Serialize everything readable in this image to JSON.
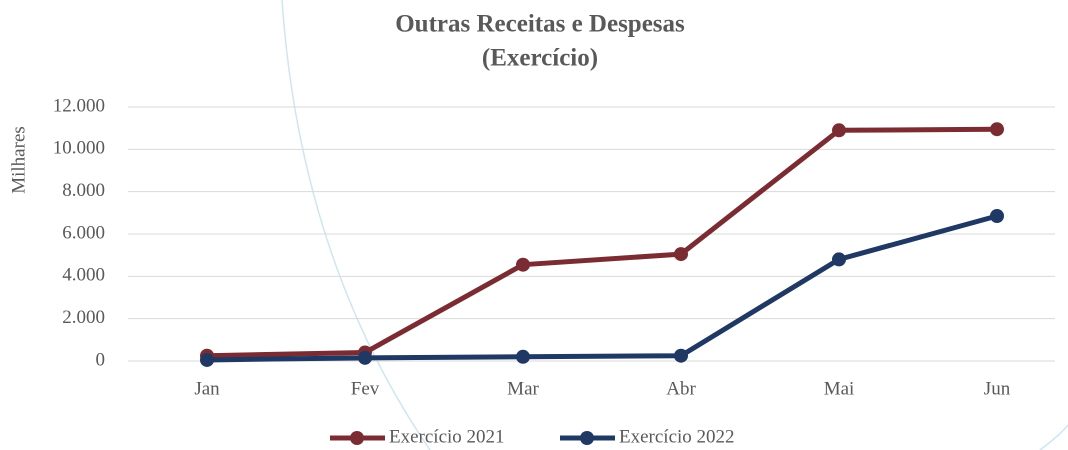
{
  "chart_data": {
    "type": "line",
    "title": [
      "Outras Receitas e Despesas",
      "(Exercício)"
    ],
    "y_label": "Milhares",
    "categories": [
      "Jan",
      "Fev",
      "Mar",
      "Abr",
      "Mai",
      "Jun"
    ],
    "series": [
      {
        "name": "Exercício 2021",
        "color": "#7b2c33",
        "values": [
          250,
          400,
          4550,
          5050,
          10900,
          10950
        ]
      },
      {
        "name": "Exercício 2022",
        "color": "#1f3864",
        "values": [
          50,
          150,
          200,
          250,
          4800,
          6850
        ]
      }
    ],
    "ylim": [
      0,
      12000
    ],
    "yticks": [
      0,
      {
        "value": 2000,
        "label": "2.000"
      },
      {
        "value": 4000,
        "label": "4.000"
      },
      {
        "value": 6000,
        "label": "6.000"
      },
      {
        "value": 8000,
        "label": "8.000"
      },
      {
        "value": 10000,
        "label": "10.000"
      },
      {
        "value": 12000,
        "label": "12.000"
      }
    ],
    "grid": true,
    "legend": "bottom"
  }
}
